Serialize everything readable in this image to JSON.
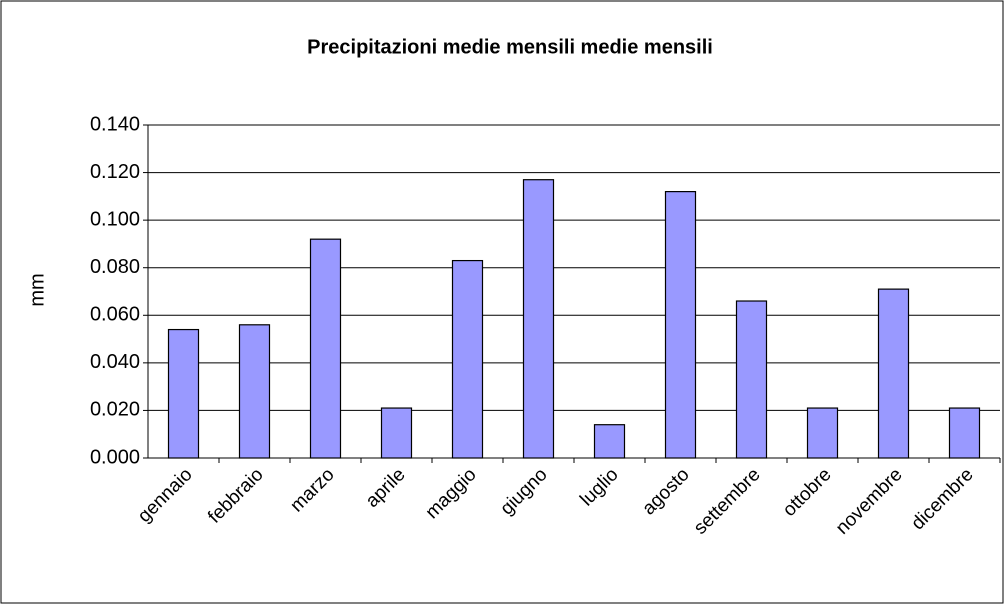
{
  "chart_data": {
    "type": "bar",
    "title": "Precipitazioni medie mensili medie mensili",
    "y_label": "mm",
    "categories": [
      "gennaio",
      "febbraio",
      "marzo",
      "aprile",
      "maggio",
      "giugno",
      "luglio",
      "agosto",
      "settembre",
      "ottobre",
      "novembre",
      "dicembre"
    ],
    "values": [
      0.054,
      0.056,
      0.092,
      0.021,
      0.083,
      0.117,
      0.014,
      0.112,
      0.066,
      0.021,
      0.071,
      0.021
    ],
    "color": "#9999ff",
    "ylim": [
      0,
      0.14
    ],
    "yticks": [
      {
        "value": 0,
        "label": "0.000"
      },
      {
        "value": 0.02,
        "label": "0.020"
      },
      {
        "value": 0.04,
        "label": "0.040"
      },
      {
        "value": 0.06,
        "label": "0.060"
      },
      {
        "value": 0.08,
        "label": "0.080"
      },
      {
        "value": 0.1,
        "label": "0.100"
      },
      {
        "value": 0.12,
        "label": "0.120"
      },
      {
        "value": 0.14,
        "label": "0.140"
      }
    ],
    "grid": true
  }
}
